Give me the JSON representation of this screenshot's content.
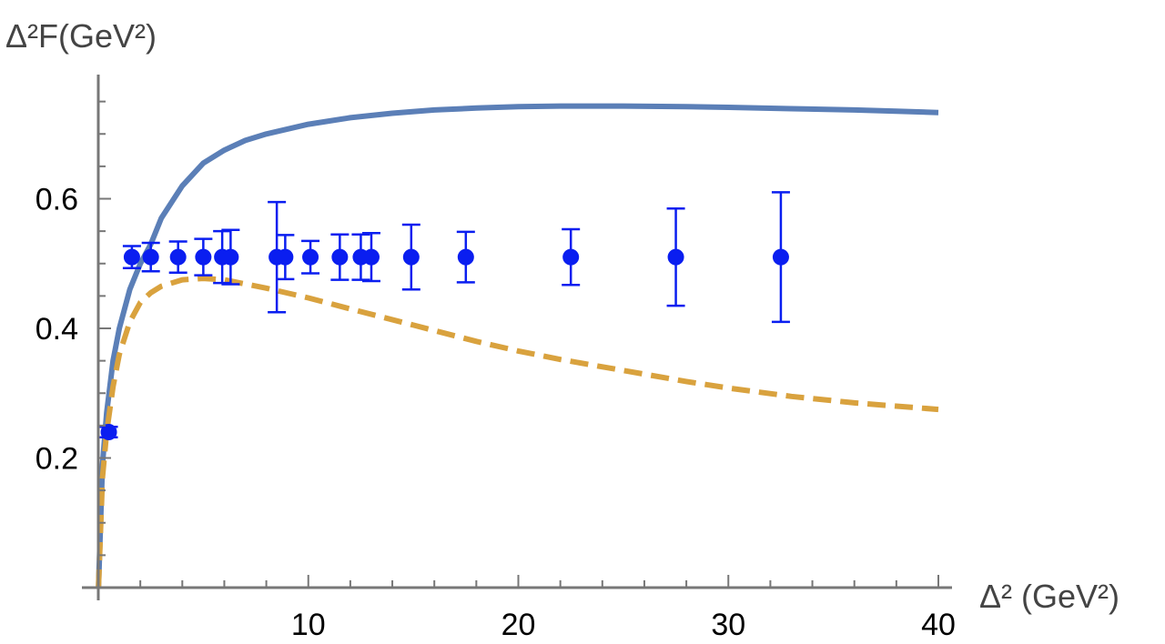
{
  "chart_data": {
    "type": "scatter",
    "title": "",
    "xlabel": "Δ² (GeV²)",
    "ylabel": "Δ²F(GeV²)",
    "xlim": [
      0,
      40
    ],
    "ylim": [
      0,
      0.8
    ],
    "x_ticks": [
      10,
      20,
      30,
      40
    ],
    "y_ticks": [
      0.2,
      0.4,
      0.6
    ],
    "x_tick_labels": [
      "10",
      "20",
      "30",
      "40"
    ],
    "y_tick_labels": [
      "0.2",
      "0.4",
      "0.6"
    ],
    "grid": false,
    "legend": "none",
    "series": [
      {
        "kind": "line",
        "style": "solid",
        "color": "#5b7fb7",
        "x": [
          0.01,
          0.2,
          0.4,
          0.7,
          1.0,
          1.5,
          2.0,
          2.5,
          3,
          4,
          5,
          6,
          7,
          8,
          10,
          12,
          14,
          16,
          18,
          20,
          22,
          25,
          28,
          30,
          33,
          36,
          38,
          40
        ],
        "y": [
          0.0,
          0.19,
          0.27,
          0.35,
          0.4,
          0.46,
          0.5,
          0.53,
          0.57,
          0.62,
          0.655,
          0.675,
          0.69,
          0.7,
          0.715,
          0.725,
          0.732,
          0.737,
          0.74,
          0.742,
          0.743,
          0.743,
          0.742,
          0.741,
          0.739,
          0.737,
          0.735,
          0.733
        ]
      },
      {
        "kind": "line",
        "style": "dashed",
        "color": "#d9a23e",
        "x": [
          0.01,
          0.2,
          0.4,
          0.7,
          1.0,
          1.5,
          2.0,
          2.5,
          3,
          4,
          5,
          6,
          8,
          10,
          12,
          15,
          18,
          20,
          22,
          25,
          28,
          30,
          33,
          36,
          38,
          40
        ],
        "y": [
          0.0,
          0.17,
          0.24,
          0.31,
          0.36,
          0.41,
          0.44,
          0.455,
          0.465,
          0.475,
          0.477,
          0.475,
          0.462,
          0.447,
          0.43,
          0.405,
          0.38,
          0.365,
          0.352,
          0.335,
          0.318,
          0.308,
          0.295,
          0.285,
          0.28,
          0.275
        ]
      },
      {
        "kind": "errorbar",
        "color": "#0a1ef0",
        "x": [
          0.5,
          1.6,
          2.5,
          3.8,
          5.0,
          5.9,
          6.3,
          8.5,
          8.9,
          10.1,
          11.5,
          12.5,
          13.0,
          14.9,
          17.5,
          22.5,
          27.5,
          32.5
        ],
        "y": [
          0.24,
          0.51,
          0.51,
          0.51,
          0.51,
          0.51,
          0.51,
          0.51,
          0.51,
          0.51,
          0.51,
          0.51,
          0.51,
          0.51,
          0.51,
          0.51,
          0.51,
          0.51
        ],
        "err": [
          0.008,
          0.017,
          0.022,
          0.024,
          0.028,
          0.04,
          0.042,
          0.085,
          0.034,
          0.025,
          0.035,
          0.035,
          0.037,
          0.05,
          0.039,
          0.043,
          0.075,
          0.1
        ]
      }
    ]
  }
}
